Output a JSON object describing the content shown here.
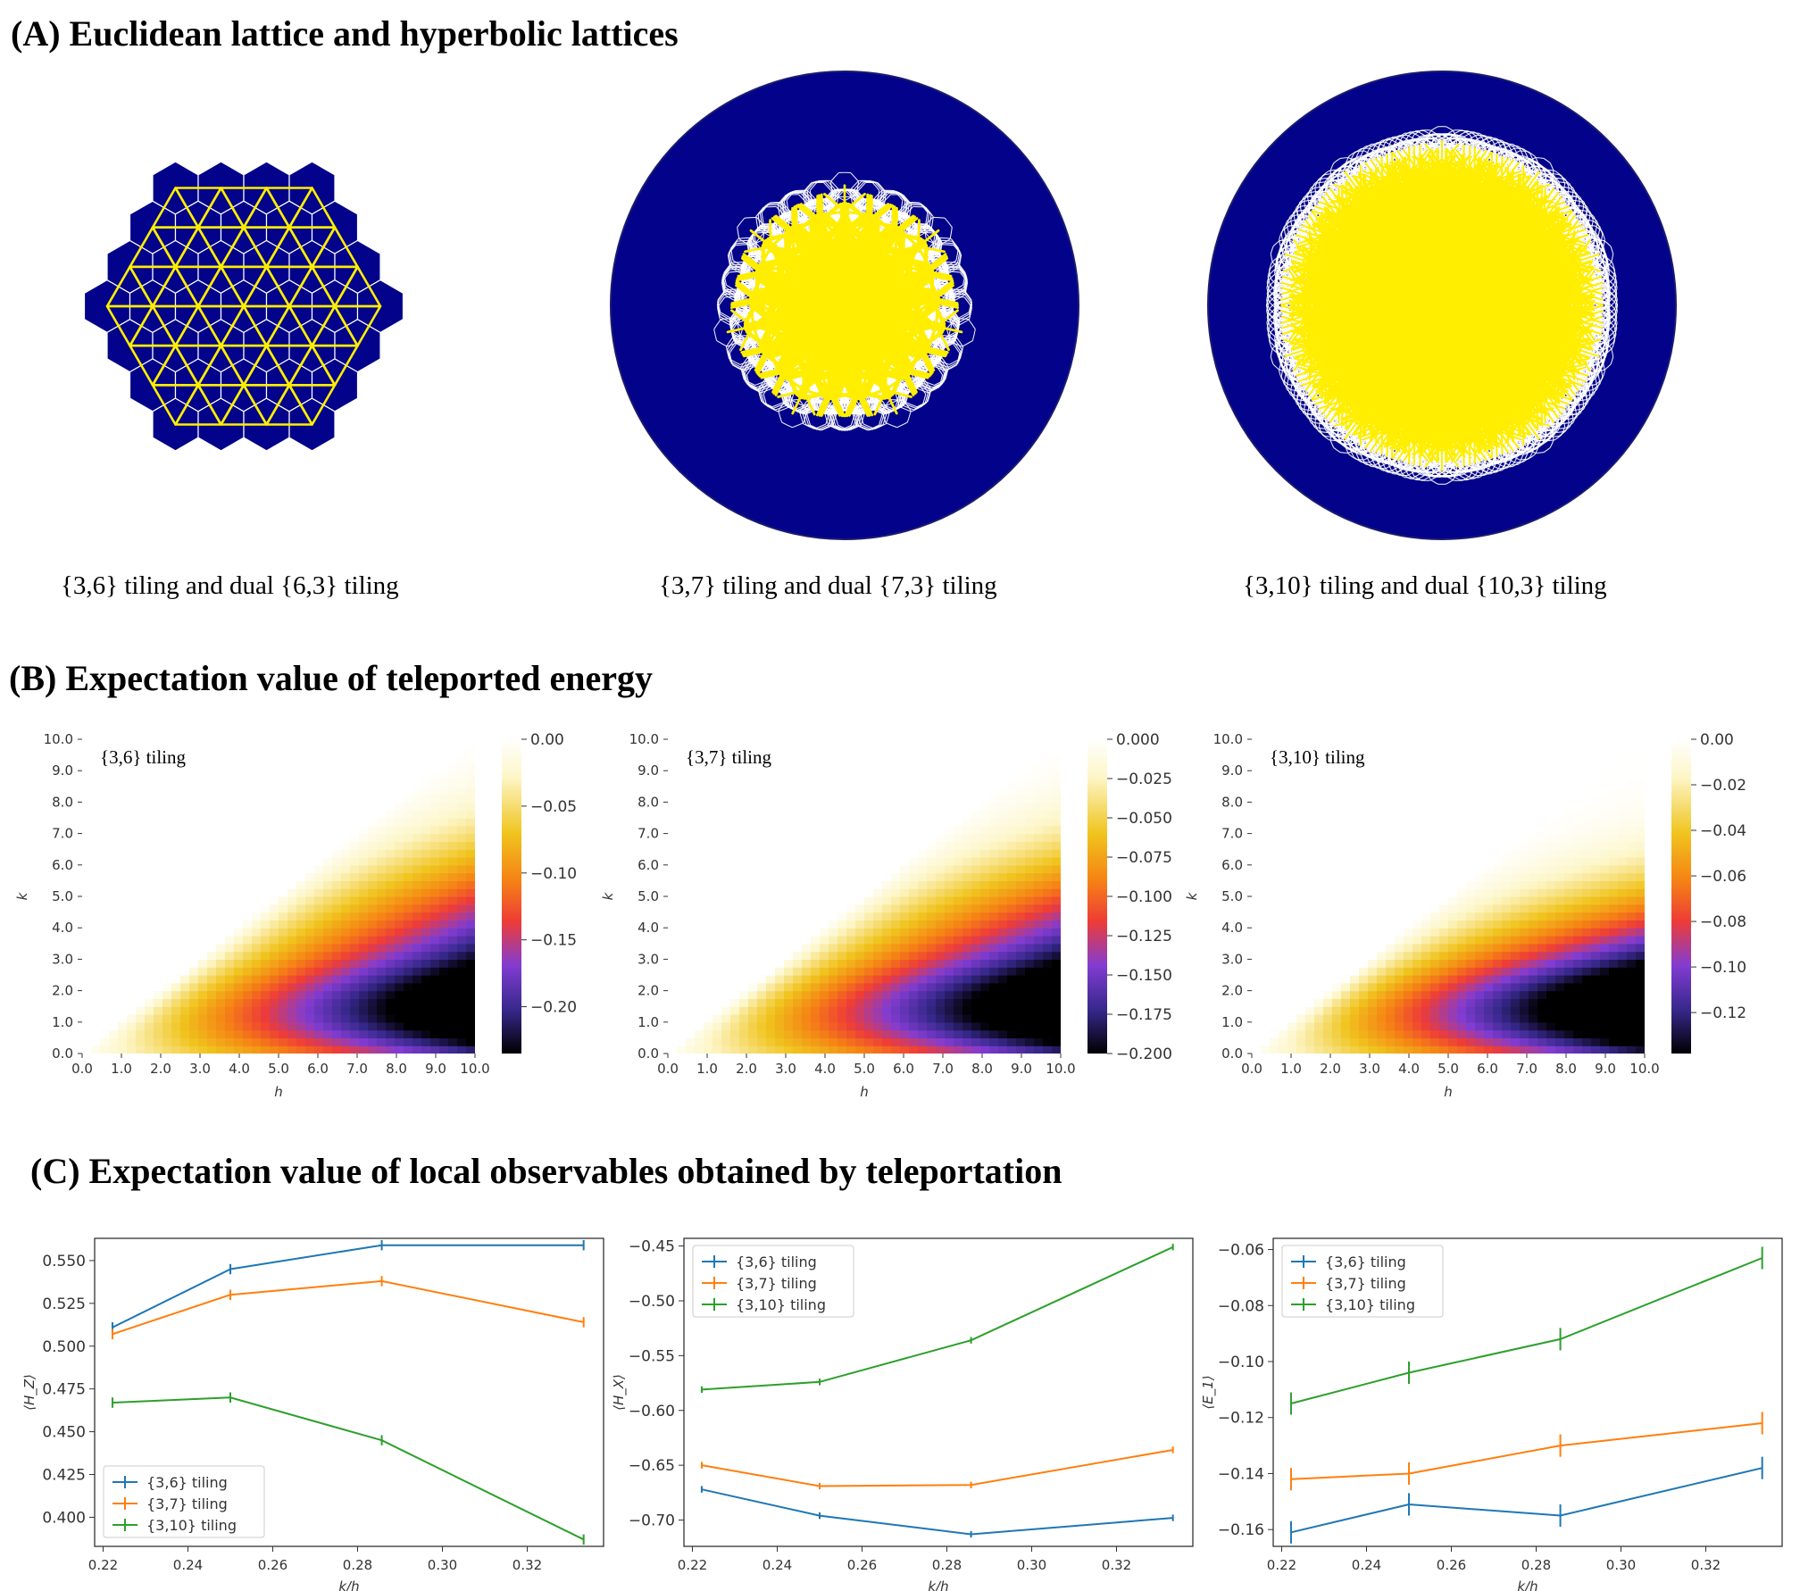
{
  "sections": {
    "a": "(A) Euclidean lattice and hyperbolic lattices",
    "b": "(B) Expectation value of teleported energy",
    "c": "(C) Expectation value of local observables obtained by teleportation"
  },
  "colors": {
    "tile": "#02028a",
    "primal_edge": "#ffee00",
    "dual_edge": "#ffffff",
    "series": [
      "#1f77b4",
      "#ff7f0e",
      "#2ca02c"
    ]
  },
  "lattices": [
    {
      "caption": "{3,6} tiling and dual {6,3} tiling"
    },
    {
      "caption": "{3,7} tiling and dual {7,3} tiling"
    },
    {
      "caption": "{3,10} tiling and dual {10,3} tiling"
    }
  ],
  "chart_data": [
    {
      "type": "heatmap",
      "inset_label": "{3,6} tiling",
      "xlabel": "h",
      "ylabel": "k",
      "x_ticks": [
        "0.0",
        "1.0",
        "2.0",
        "3.0",
        "4.0",
        "5.0",
        "6.0",
        "7.0",
        "8.0",
        "9.0",
        "10.0"
      ],
      "y_ticks": [
        "0.0",
        "1.0",
        "2.0",
        "3.0",
        "4.0",
        "5.0",
        "6.0",
        "7.0",
        "8.0",
        "9.0",
        "10.0"
      ],
      "xlim": [
        0,
        10
      ],
      "ylim": [
        0,
        10
      ],
      "colormap": "CMRmap_r",
      "vmin": -0.235,
      "vmax": 0.0,
      "min_location": {
        "h": 10,
        "k": 3.2
      },
      "colorbar_ticks": [
        "0.00",
        "−0.05",
        "−0.10",
        "−0.15",
        "−0.20"
      ],
      "colorbar_values": [
        0.0,
        -0.05,
        -0.1,
        -0.15,
        -0.2
      ]
    },
    {
      "type": "heatmap",
      "inset_label": "{3,7} tiling",
      "xlabel": "h",
      "ylabel": "k",
      "x_ticks": [
        "0.0",
        "1.0",
        "2.0",
        "3.0",
        "4.0",
        "5.0",
        "6.0",
        "7.0",
        "8.0",
        "9.0",
        "10.0"
      ],
      "y_ticks": [
        "0.0",
        "1.0",
        "2.0",
        "3.0",
        "4.0",
        "5.0",
        "6.0",
        "7.0",
        "8.0",
        "9.0",
        "10.0"
      ],
      "xlim": [
        0,
        10
      ],
      "ylim": [
        0,
        10
      ],
      "colormap": "CMRmap_r",
      "vmin": -0.2,
      "vmax": 0.0,
      "min_location": {
        "h": 10,
        "k": 3.0
      },
      "colorbar_ticks": [
        "0.000",
        "−0.025",
        "−0.050",
        "−0.075",
        "−0.100",
        "−0.125",
        "−0.150",
        "−0.175",
        "−0.200"
      ],
      "colorbar_values": [
        0.0,
        -0.025,
        -0.05,
        -0.075,
        -0.1,
        -0.125,
        -0.15,
        -0.175,
        -0.2
      ]
    },
    {
      "type": "heatmap",
      "inset_label": "{3,10} tiling",
      "xlabel": "h",
      "ylabel": "k",
      "x_ticks": [
        "0.0",
        "1.0",
        "2.0",
        "3.0",
        "4.0",
        "5.0",
        "6.0",
        "7.0",
        "8.0",
        "9.0",
        "10.0"
      ],
      "y_ticks": [
        "0.0",
        "1.0",
        "2.0",
        "3.0",
        "4.0",
        "5.0",
        "6.0",
        "7.0",
        "8.0",
        "9.0",
        "10.0"
      ],
      "xlim": [
        0,
        10
      ],
      "ylim": [
        0,
        10
      ],
      "colormap": "CMRmap_r",
      "vmin": -0.138,
      "vmax": 0.0,
      "min_location": {
        "h": 10,
        "k": 2.4
      },
      "colorbar_ticks": [
        "0.00",
        "−0.02",
        "−0.04",
        "−0.06",
        "−0.08",
        "−0.10",
        "−0.12"
      ],
      "colorbar_values": [
        0.0,
        -0.02,
        -0.04,
        -0.06,
        -0.08,
        -0.1,
        -0.12
      ]
    },
    {
      "type": "line",
      "xlabel": "k/h",
      "ylabel": "⟨H_Z⟩",
      "xlim": [
        0.218,
        0.338
      ],
      "ylim": [
        0.383,
        0.563
      ],
      "x_ticks": [
        0.22,
        0.24,
        0.26,
        0.28,
        0.3,
        0.32
      ],
      "x_tick_labels": [
        "0.22",
        "0.24",
        "0.26",
        "0.28",
        "0.30",
        "0.32"
      ],
      "y_ticks": [
        0.4,
        0.425,
        0.45,
        0.475,
        0.5,
        0.525,
        0.55
      ],
      "y_tick_labels": [
        "0.400",
        "0.425",
        "0.450",
        "0.475",
        "0.500",
        "0.525",
        "0.550"
      ],
      "legend": "lower-left",
      "x": [
        0.2222,
        0.25,
        0.2857,
        0.3333
      ],
      "series": [
        {
          "name": "{3,6} tiling",
          "values": [
            0.511,
            0.545,
            0.559,
            0.559
          ],
          "errors": [
            0.003,
            0.003,
            0.003,
            0.003
          ]
        },
        {
          "name": "{3,7} tiling",
          "values": [
            0.507,
            0.53,
            0.538,
            0.514
          ],
          "errors": [
            0.003,
            0.003,
            0.003,
            0.003
          ]
        },
        {
          "name": "{3,10} tiling",
          "values": [
            0.467,
            0.47,
            0.445,
            0.387
          ],
          "errors": [
            0.003,
            0.003,
            0.003,
            0.003
          ]
        }
      ]
    },
    {
      "type": "line",
      "xlabel": "k/h",
      "ylabel": "⟨H_X⟩",
      "xlim": [
        0.218,
        0.338
      ],
      "ylim": [
        -0.724,
        -0.443
      ],
      "x_ticks": [
        0.22,
        0.24,
        0.26,
        0.28,
        0.3,
        0.32
      ],
      "x_tick_labels": [
        "0.22",
        "0.24",
        "0.26",
        "0.28",
        "0.30",
        "0.32"
      ],
      "y_ticks": [
        -0.7,
        -0.65,
        -0.6,
        -0.55,
        -0.5,
        -0.45
      ],
      "y_tick_labels": [
        "−0.70",
        "−0.65",
        "−0.60",
        "−0.55",
        "−0.50",
        "−0.45"
      ],
      "legend": "top-left",
      "x": [
        0.2222,
        0.25,
        0.2857,
        0.3333
      ],
      "series": [
        {
          "name": "{3,6} tiling",
          "values": [
            -0.672,
            -0.696,
            -0.713,
            -0.698
          ],
          "errors": [
            0.003,
            0.003,
            0.003,
            0.003
          ]
        },
        {
          "name": "{3,7} tiling",
          "values": [
            -0.65,
            -0.669,
            -0.668,
            -0.636
          ],
          "errors": [
            0.003,
            0.003,
            0.003,
            0.003
          ]
        },
        {
          "name": "{3,10} tiling",
          "values": [
            -0.581,
            -0.574,
            -0.536,
            -0.451
          ],
          "errors": [
            0.003,
            0.003,
            0.003,
            0.003
          ]
        }
      ]
    },
    {
      "type": "line",
      "xlabel": "k/h",
      "ylabel": "⟨E_1⟩",
      "xlim": [
        0.218,
        0.338
      ],
      "ylim": [
        -0.166,
        -0.056
      ],
      "x_ticks": [
        0.22,
        0.24,
        0.26,
        0.28,
        0.3,
        0.32
      ],
      "x_tick_labels": [
        "0.22",
        "0.24",
        "0.26",
        "0.28",
        "0.30",
        "0.32"
      ],
      "y_ticks": [
        -0.16,
        -0.14,
        -0.12,
        -0.1,
        -0.08,
        -0.06
      ],
      "y_tick_labels": [
        "−0.16",
        "−0.14",
        "−0.12",
        "−0.10",
        "−0.08",
        "−0.06"
      ],
      "legend": "top-left",
      "x": [
        0.2222,
        0.25,
        0.2857,
        0.3333
      ],
      "series": [
        {
          "name": "{3,6} tiling",
          "values": [
            -0.161,
            -0.151,
            -0.155,
            -0.138
          ],
          "errors": [
            0.004,
            0.004,
            0.004,
            0.004
          ]
        },
        {
          "name": "{3,7} tiling",
          "values": [
            -0.142,
            -0.14,
            -0.13,
            -0.122
          ],
          "errors": [
            0.004,
            0.004,
            0.004,
            0.004
          ]
        },
        {
          "name": "{3,10} tiling",
          "values": [
            -0.115,
            -0.104,
            -0.092,
            -0.063
          ],
          "errors": [
            0.004,
            0.004,
            0.004,
            0.004
          ]
        }
      ]
    }
  ]
}
